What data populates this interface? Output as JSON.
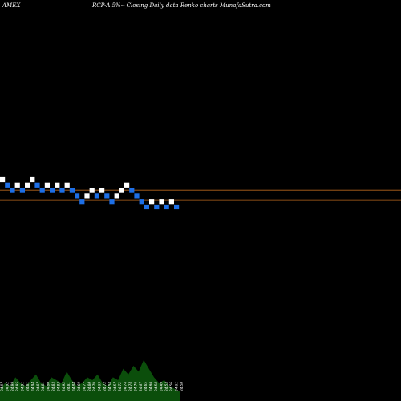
{
  "header": {
    "exchange": "AMEX",
    "title": "RCP-A 5%--  Closing Daily data  Renko  charts MunafaSutra.com"
  },
  "colors": {
    "background": "#000000",
    "up_brick": "#ffffff",
    "down_brick": "#1e6fe6",
    "level_line": "#b5651d",
    "volume": "#0d5c0d"
  },
  "chart_data": {
    "type": "renko",
    "title": "RCP-A 5%--  Closing Daily data  Renko  charts MunafaSutra.com",
    "reference_lines": [
      24.8,
      24.45
    ],
    "bricks": [
      {
        "dir": "up",
        "level": 25.1
      },
      {
        "dir": "down",
        "level": 24.9
      },
      {
        "dir": "down",
        "level": 24.7
      },
      {
        "dir": "up",
        "level": 24.9
      },
      {
        "dir": "down",
        "level": 24.7
      },
      {
        "dir": "up",
        "level": 24.9
      },
      {
        "dir": "up",
        "level": 25.1
      },
      {
        "dir": "down",
        "level": 24.9
      },
      {
        "dir": "down",
        "level": 24.7
      },
      {
        "dir": "up",
        "level": 24.9
      },
      {
        "dir": "down",
        "level": 24.7
      },
      {
        "dir": "up",
        "level": 24.9
      },
      {
        "dir": "down",
        "level": 24.7
      },
      {
        "dir": "up",
        "level": 24.9
      },
      {
        "dir": "down",
        "level": 24.7
      },
      {
        "dir": "down",
        "level": 24.5
      },
      {
        "dir": "down",
        "level": 24.3
      },
      {
        "dir": "up",
        "level": 24.5
      },
      {
        "dir": "up",
        "level": 24.7
      },
      {
        "dir": "down",
        "level": 24.5
      },
      {
        "dir": "up",
        "level": 24.7
      },
      {
        "dir": "down",
        "level": 24.5
      },
      {
        "dir": "down",
        "level": 24.3
      },
      {
        "dir": "up",
        "level": 24.5
      },
      {
        "dir": "up",
        "level": 24.7
      },
      {
        "dir": "up",
        "level": 24.9
      },
      {
        "dir": "down",
        "level": 24.7
      },
      {
        "dir": "down",
        "level": 24.5
      },
      {
        "dir": "down",
        "level": 24.3
      },
      {
        "dir": "down",
        "level": 24.1
      },
      {
        "dir": "up",
        "level": 24.3
      },
      {
        "dir": "down",
        "level": 24.1
      },
      {
        "dir": "up",
        "level": 24.3
      },
      {
        "dir": "down",
        "level": 24.1
      },
      {
        "dir": "up",
        "level": 24.3
      },
      {
        "dir": "down",
        "level": 24.1
      }
    ],
    "x_labels": [
      "24.97",
      "24.92",
      "24.99",
      "24.95",
      "24.91",
      "24.81",
      "24.94",
      "24.87",
      "24.81",
      "24.80",
      "24.83",
      "24.83",
      "24.92",
      "24.81",
      "24.84",
      "24.69",
      "24.77",
      "24.80",
      "24.79",
      "24.69",
      "24.72",
      "24.58",
      "24.57",
      "24.72",
      "24.74",
      "24.74",
      "24.76",
      "24.67",
      "24.65",
      "24.66",
      "24.58",
      "24.49",
      "24.53",
      "24.56",
      "24.61",
      "24.50"
    ],
    "volume": [
      2,
      4,
      3,
      6,
      4,
      3,
      5,
      7,
      4,
      3,
      6,
      5,
      4,
      8,
      5,
      3,
      4,
      6,
      5,
      7,
      4,
      3,
      6,
      5,
      9,
      7,
      10,
      8,
      12,
      9,
      6,
      4,
      5,
      3,
      2,
      1
    ]
  }
}
